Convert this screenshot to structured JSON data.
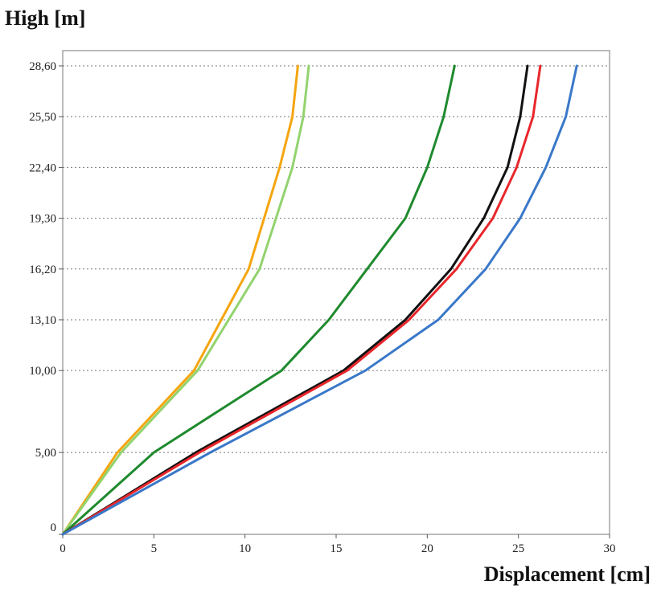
{
  "chart_data": {
    "type": "line",
    "xlabel": "Displacement [cm]",
    "ylabel": "High [m]",
    "xlim": [
      0,
      30
    ],
    "ylim": [
      0,
      28.6
    ],
    "x_ticks": [
      "0",
      "5",
      "10",
      "15",
      "20",
      "25",
      "30"
    ],
    "y_ticks": [
      {
        "value": 0,
        "label": "0"
      },
      {
        "value": 5,
        "label": "5,00"
      },
      {
        "value": 10,
        "label": "10,00"
      },
      {
        "value": 13.1,
        "label": "13,10"
      },
      {
        "value": 16.2,
        "label": "16,20"
      },
      {
        "value": 19.3,
        "label": "19,30"
      },
      {
        "value": 22.4,
        "label": "22,40"
      },
      {
        "value": 25.5,
        "label": "25,50"
      },
      {
        "value": 28.6,
        "label": "28,60"
      }
    ],
    "grid": "horizontal dotted",
    "legend": "none",
    "series": [
      {
        "color": "#f5a50f",
        "x": [
          0,
          3.0,
          7.2,
          10.2,
          11.9,
          12.6,
          12.9
        ],
        "y": [
          0,
          5,
          10,
          16.2,
          22.4,
          25.5,
          28.6
        ]
      },
      {
        "color": "#92d36e",
        "x": [
          0,
          3.2,
          7.4,
          10.8,
          12.6,
          13.2,
          13.5
        ],
        "y": [
          0,
          5,
          10,
          16.2,
          22.4,
          25.5,
          28.6
        ]
      },
      {
        "color": "#1f8a2e",
        "x": [
          0,
          5.0,
          12.0,
          14.6,
          16.7,
          18.8,
          20.0,
          20.9,
          21.5
        ],
        "y": [
          0,
          5,
          10,
          13.1,
          16.2,
          19.3,
          22.4,
          25.5,
          28.6
        ]
      },
      {
        "color": "#111111",
        "x": [
          0,
          7.3,
          15.4,
          18.8,
          21.3,
          23.1,
          24.4,
          25.1,
          25.5
        ],
        "y": [
          0,
          5,
          10,
          13.1,
          16.2,
          19.3,
          22.4,
          25.5,
          28.6
        ]
      },
      {
        "color": "#e8262b",
        "x": [
          0,
          7.5,
          15.6,
          19.0,
          21.6,
          23.6,
          24.9,
          25.8,
          26.2
        ],
        "y": [
          0,
          5,
          10,
          13.1,
          16.2,
          19.3,
          22.4,
          25.5,
          28.6
        ]
      },
      {
        "color": "#3a78c8",
        "x": [
          0,
          8.1,
          16.6,
          20.6,
          23.2,
          25.1,
          26.5,
          27.6,
          28.2
        ],
        "y": [
          0,
          5,
          10,
          13.1,
          16.2,
          19.3,
          22.4,
          25.5,
          28.6
        ]
      }
    ]
  }
}
